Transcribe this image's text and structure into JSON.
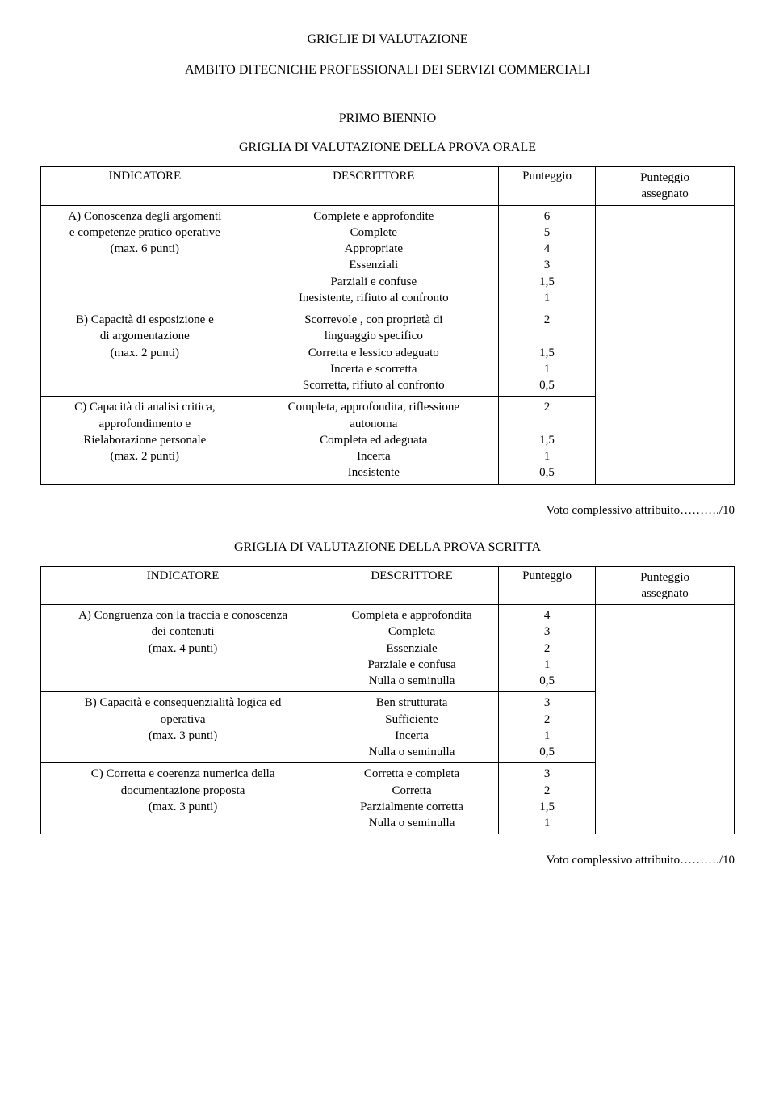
{
  "doc": {
    "title_main": "GRIGLIE DI VALUTAZIONE",
    "title_sub": "AMBITO DITECNICHE PROFESSIONALI DEI SERVIZI COMMERCIALI",
    "section_heading": "PRIMO BIENNIO",
    "voto_line": "Voto complessivo attribuito………./10"
  },
  "headers": {
    "indicatore": "INDICATORE",
    "descrittore": "DESCRITTORE",
    "punteggio": "Punteggio",
    "punteggio_assegnato_l1": "Punteggio",
    "punteggio_assegnato_l2": "assegnato"
  },
  "orale": {
    "heading": "GRIGLIA DI VALUTAZIONE DELLA PROVA  ORALE",
    "rows": [
      {
        "ind_l1": "A) Conoscenza degli argomenti",
        "ind_l2": "e  competenze pratico operative",
        "ind_l3": "(max. 6 punti)",
        "desc": [
          "Complete e approfondite",
          "Complete",
          "Appropriate",
          "Essenziali",
          "Parziali e confuse",
          "Inesistente, rifiuto al confronto"
        ],
        "pts": [
          "6",
          "5",
          "4",
          "3",
          "1,5",
          "1"
        ]
      },
      {
        "ind_l1": "B) Capacità di esposizione e",
        "ind_l2": "di argomentazione",
        "ind_l3": "(max. 2 punti)",
        "desc": [
          "Scorrevole , con proprietà di",
          "linguaggio specifico",
          "Corretta e lessico adeguato",
          "Incerta e scorretta",
          "Scorretta, rifiuto al confronto"
        ],
        "pts": [
          "2",
          "",
          "1,5",
          "1",
          "0,5"
        ]
      },
      {
        "ind_l1": "C) Capacità di analisi critica,",
        "ind_l2": "approfondimento e",
        "ind_l3": "Rielaborazione personale",
        "ind_l4": "(max. 2 punti)",
        "desc": [
          "Completa, approfondita, riflessione",
          "autonoma",
          "Completa ed adeguata",
          "Incerta",
          "Inesistente"
        ],
        "pts": [
          "2",
          "",
          "1,5",
          "1",
          "0,5"
        ]
      }
    ]
  },
  "scritta": {
    "heading": "GRIGLIA DI VALUTAZIONE DELLA PROVA  SCRITTA",
    "rows": [
      {
        "ind_l1": "A) Congruenza con la traccia e conoscenza",
        "ind_l2": "dei contenuti",
        "ind_l3": "(max. 4 punti)",
        "desc": [
          "Completa e approfondita",
          "Completa",
          "Essenziale",
          "Parziale e confusa",
          "Nulla o seminulla"
        ],
        "pts": [
          "4",
          "3",
          "2",
          "1",
          "0,5"
        ]
      },
      {
        "ind_l1": "B) Capacità e consequenzialità logica ed",
        "ind_l2": "operativa",
        "ind_l3": "(max. 3 punti)",
        "desc": [
          "Ben strutturata",
          "Sufficiente",
          "Incerta",
          "Nulla o seminulla"
        ],
        "pts": [
          "3",
          "2",
          "1",
          "0,5"
        ]
      },
      {
        "ind_l1": "C)  Corretta e coerenza numerica della",
        "ind_l2": "documentazione proposta",
        "ind_l3": "(max. 3 punti)",
        "desc": [
          "Corretta e completa",
          "Corretta",
          "Parzialmente corretta",
          "Nulla o seminulla"
        ],
        "pts": [
          "3",
          "2",
          "1,5",
          "1"
        ]
      }
    ]
  }
}
